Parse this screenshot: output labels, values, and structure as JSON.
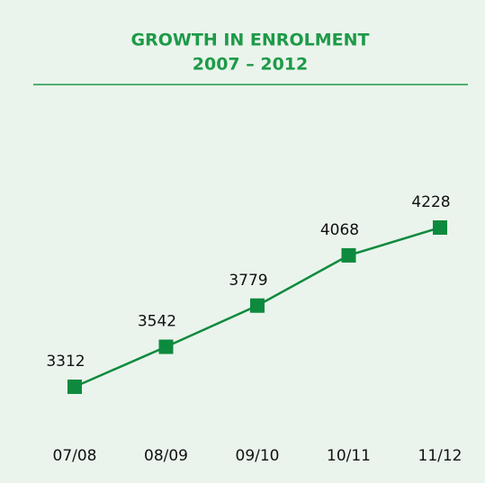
{
  "chart_data": {
    "type": "line",
    "title": "GROWTH IN ENROLMENT",
    "subtitle": "2007 – 2012",
    "categories": [
      "07/08",
      "08/09",
      "09/10",
      "10/11",
      "11/12"
    ],
    "values": [
      3312,
      3542,
      3779,
      4068,
      4228
    ],
    "color": "#0e8a3e"
  }
}
